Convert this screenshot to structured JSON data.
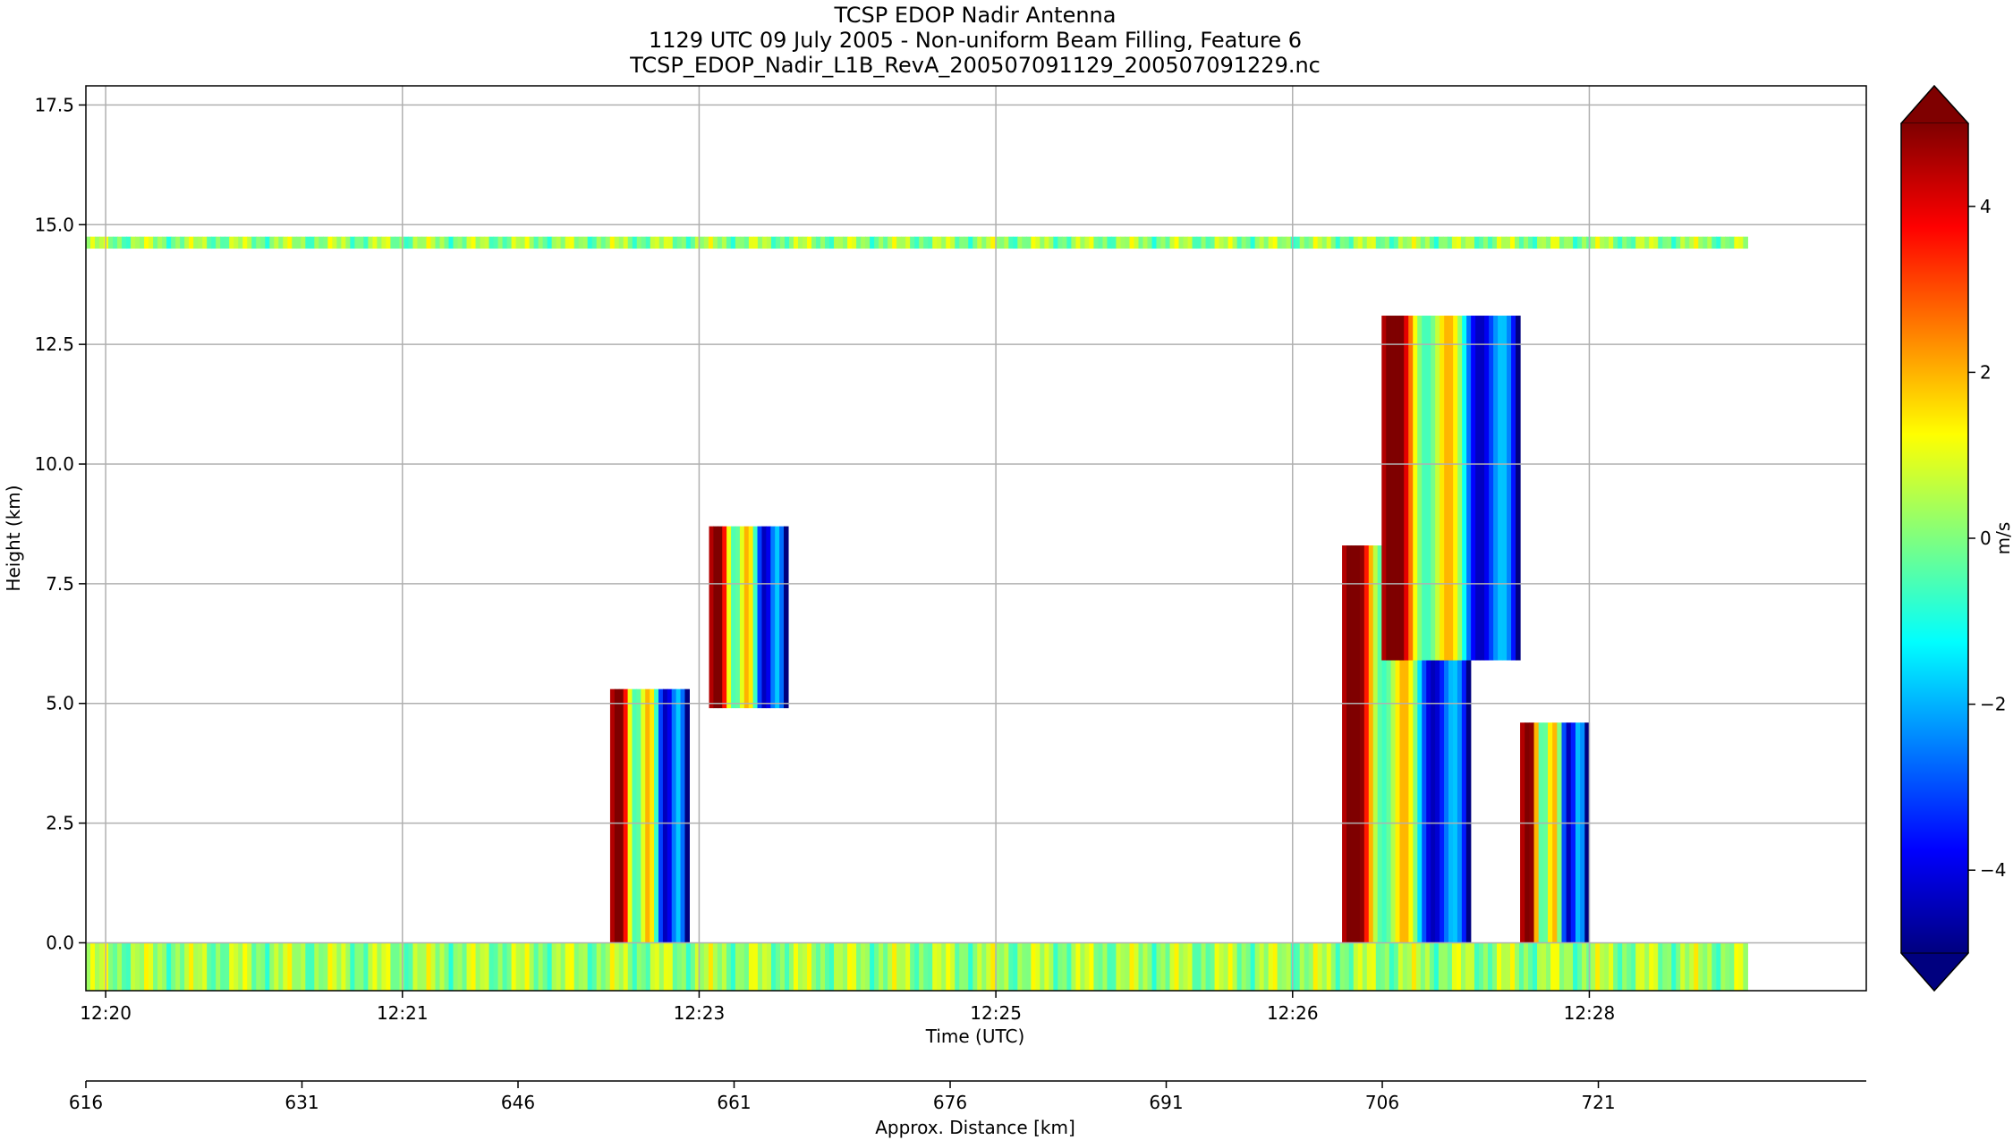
{
  "chart_data": {
    "type": "heatmap",
    "title_lines": [
      "TCSP EDOP Nadir Antenna",
      "1129 UTC 09 July 2005 - Non-uniform Beam Filling, Feature 6",
      "TCSP_EDOP_Nadir_L1B_RevA_200507091129_200507091229.nc"
    ],
    "xlabel": "Time (UTC)",
    "ylabel": "Height (km)",
    "x2label": "Approx. Distance [km]",
    "colorbar_label": "m/s",
    "x_tick_labels": [
      "12:20",
      "12:21",
      "12:23",
      "12:25",
      "12:26",
      "12:28"
    ],
    "x_tick_positions_min": [
      0.1,
      1.6,
      3.1,
      4.6,
      6.1,
      7.6
    ],
    "xlim_min": [
      0,
      9.0
    ],
    "x2_tick_labels": [
      "616",
      "631",
      "646",
      "661",
      "676",
      "691",
      "706",
      "721"
    ],
    "x2_tick_values": [
      616,
      631,
      646,
      661,
      676,
      691,
      706,
      721
    ],
    "x2lim": [
      616,
      739.6
    ],
    "y_ticks": [
      0.0,
      2.5,
      5.0,
      7.5,
      10.0,
      12.5,
      15.0,
      17.5
    ],
    "y_tick_labels": [
      "0.0",
      "2.5",
      "5.0",
      "7.5",
      "10.0",
      "12.5",
      "15.0",
      "17.5"
    ],
    "ylim": [
      -1.0,
      17.9
    ],
    "grid": true,
    "colorbar_ticks": [
      -4,
      -2,
      0,
      2,
      4
    ],
    "colorbar_tick_labels": [
      "−4",
      "−2",
      "0",
      "2",
      "4"
    ],
    "color_range": [
      -5,
      5
    ],
    "colormap": "jet",
    "colormap_stops": [
      "#00007f",
      "#0000ff",
      "#007fff",
      "#00ffff",
      "#7fff7f",
      "#ffff00",
      "#ff7f00",
      "#ff0000",
      "#7f0000"
    ],
    "background_color": "#ffffff",
    "features": [
      {
        "name": "tropopause-echo-band",
        "t_start": 0.0,
        "t_end": 8.4,
        "h_bottom": 14.5,
        "h_top": 14.75,
        "velocity": 0.2
      },
      {
        "name": "surface-noise-band",
        "t_start": 0.0,
        "t_end": 8.4,
        "h_bottom": -1.0,
        "h_top": 0.0,
        "velocity": 0.3
      },
      {
        "name": "convective-cell-1",
        "t_start": 2.65,
        "t_end": 3.05,
        "h_bottom": 0.0,
        "h_top": 5.3,
        "velocity": -0.5
      },
      {
        "name": "elevated-cell-1",
        "t_start": 3.15,
        "t_end": 3.55,
        "h_bottom": 4.9,
        "h_top": 8.7,
        "velocity": 0.5
      },
      {
        "name": "convective-cell-2-lower",
        "t_start": 6.35,
        "t_end": 7.0,
        "h_bottom": 0.0,
        "h_top": 8.3,
        "velocity": 0.0
      },
      {
        "name": "convective-cell-2-upper",
        "t_start": 6.55,
        "t_end": 7.25,
        "h_bottom": 5.9,
        "h_top": 13.1,
        "velocity": 0.6
      },
      {
        "name": "convective-cell-3",
        "t_start": 7.25,
        "t_end": 7.6,
        "h_bottom": 0.0,
        "h_top": 4.6,
        "velocity": -0.8
      }
    ]
  }
}
